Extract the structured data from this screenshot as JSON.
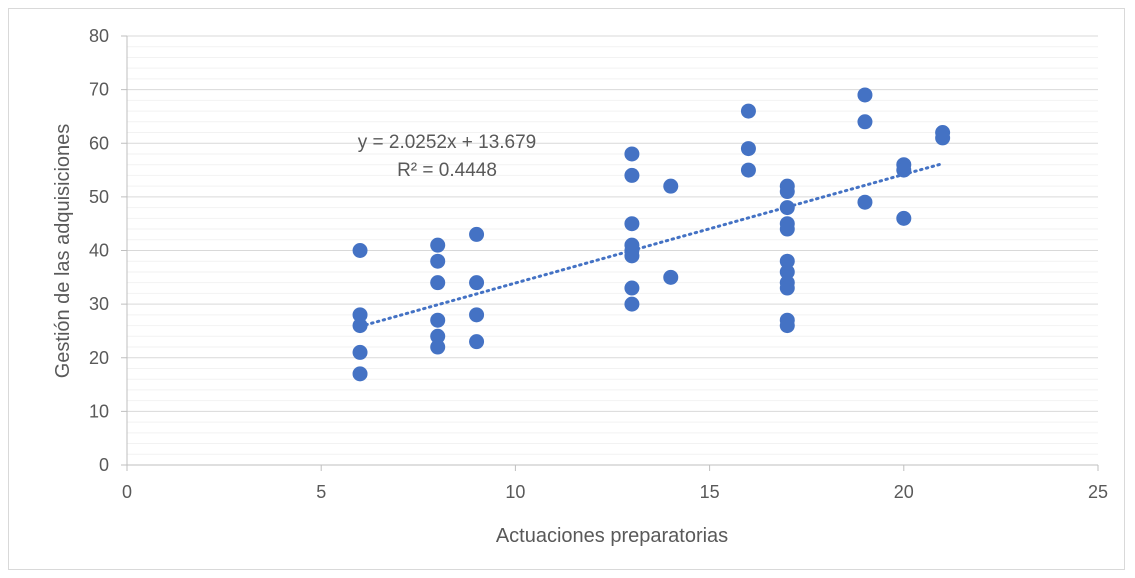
{
  "chart_data": {
    "type": "scatter",
    "title": "",
    "xlabel": "Actuaciones preparatorias",
    "ylabel": "Gestión de las adquisiciones",
    "xlim": [
      0,
      25
    ],
    "ylim": [
      0,
      80
    ],
    "x_ticks": [
      0,
      5,
      10,
      15,
      20,
      25
    ],
    "y_ticks": [
      0,
      10,
      20,
      30,
      40,
      50,
      60,
      70,
      80
    ],
    "grid": true,
    "legend": "none",
    "point_color": "#4472c4",
    "trendline": {
      "type": "linear",
      "slope": 2.0252,
      "intercept": 13.679,
      "x_range": [
        6,
        21
      ],
      "style": "dotted",
      "color": "#4472c4"
    },
    "annotations": {
      "equation": "y = 2.0252x + 13.679",
      "r_squared": "R² = 0.4448"
    },
    "points": [
      {
        "x": 6,
        "y": 40
      },
      {
        "x": 6,
        "y": 28
      },
      {
        "x": 6,
        "y": 26
      },
      {
        "x": 6,
        "y": 21
      },
      {
        "x": 6,
        "y": 17
      },
      {
        "x": 8,
        "y": 41
      },
      {
        "x": 8,
        "y": 38
      },
      {
        "x": 8,
        "y": 34
      },
      {
        "x": 8,
        "y": 27
      },
      {
        "x": 8,
        "y": 24
      },
      {
        "x": 8,
        "y": 22
      },
      {
        "x": 9,
        "y": 43
      },
      {
        "x": 9,
        "y": 34
      },
      {
        "x": 9,
        "y": 28
      },
      {
        "x": 9,
        "y": 23
      },
      {
        "x": 13,
        "y": 58
      },
      {
        "x": 13,
        "y": 54
      },
      {
        "x": 13,
        "y": 45
      },
      {
        "x": 13,
        "y": 41
      },
      {
        "x": 13,
        "y": 40
      },
      {
        "x": 13,
        "y": 39
      },
      {
        "x": 13,
        "y": 33
      },
      {
        "x": 13,
        "y": 30
      },
      {
        "x": 14,
        "y": 52
      },
      {
        "x": 14,
        "y": 35
      },
      {
        "x": 16,
        "y": 66
      },
      {
        "x": 16,
        "y": 59
      },
      {
        "x": 16,
        "y": 55
      },
      {
        "x": 17,
        "y": 52
      },
      {
        "x": 17,
        "y": 51
      },
      {
        "x": 17,
        "y": 48
      },
      {
        "x": 17,
        "y": 45
      },
      {
        "x": 17,
        "y": 44
      },
      {
        "x": 17,
        "y": 38
      },
      {
        "x": 17,
        "y": 36
      },
      {
        "x": 17,
        "y": 34
      },
      {
        "x": 17,
        "y": 33
      },
      {
        "x": 17,
        "y": 27
      },
      {
        "x": 17,
        "y": 26
      },
      {
        "x": 19,
        "y": 69
      },
      {
        "x": 19,
        "y": 64
      },
      {
        "x": 19,
        "y": 49
      },
      {
        "x": 20,
        "y": 56
      },
      {
        "x": 20,
        "y": 55
      },
      {
        "x": 20,
        "y": 46
      },
      {
        "x": 21,
        "y": 62
      },
      {
        "x": 21,
        "y": 61
      }
    ]
  }
}
